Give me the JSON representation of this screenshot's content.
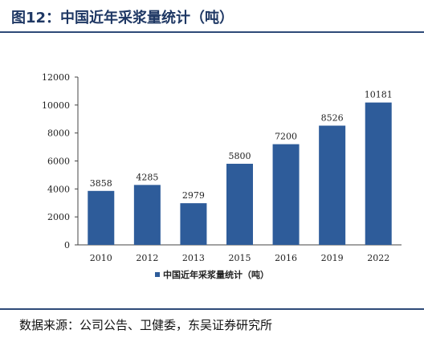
{
  "figure_title": "图12：中国近年采浆量统计（吨）",
  "source_note": "数据来源：公司公告、卫健委，东吴证券研究所",
  "colors": {
    "bar": "#2e5c9a",
    "title": "#1f3864",
    "rule": "#2e4a78"
  },
  "chart_data": {
    "type": "bar",
    "categories": [
      "2010",
      "2012",
      "2013",
      "2015",
      "2016",
      "2019",
      "2022"
    ],
    "series": [
      {
        "name": "中国近年采浆量统计（吨）",
        "values": [
          3858,
          4285,
          2979,
          5800,
          7200,
          8526,
          10181
        ]
      }
    ],
    "data_labels": [
      "3858",
      "4285",
      "2979",
      "5800",
      "7200",
      "8526",
      "10181"
    ],
    "yticks": [
      "0",
      "2000",
      "4000",
      "6000",
      "8000",
      "10000",
      "12000"
    ],
    "ylim": [
      0,
      12000
    ],
    "grid": false,
    "legend_position": "bottom"
  }
}
